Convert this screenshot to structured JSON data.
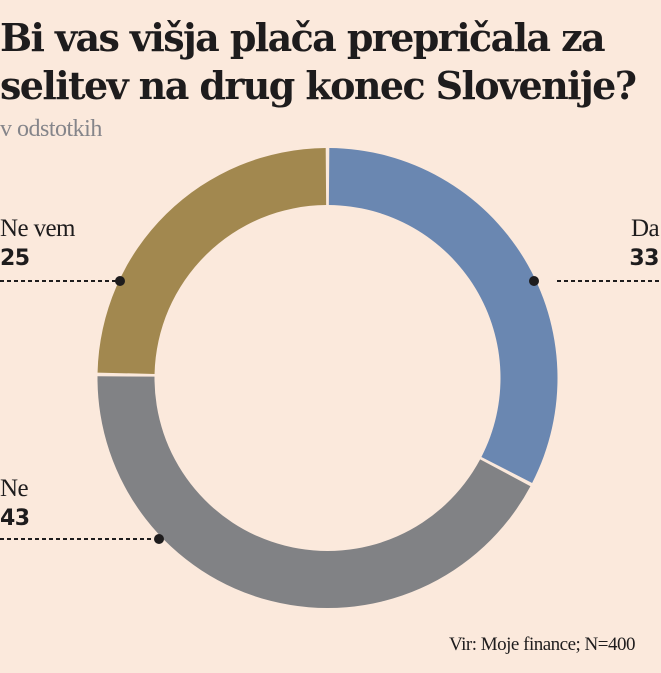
{
  "header": {
    "title_line1": "Bi vas višja plača prepričala za",
    "title_line2": "selitev na drug konec Slovenije?",
    "subtitle": "v odstotkih"
  },
  "labels": {
    "da": {
      "name": "Da",
      "value": "33"
    },
    "ne": {
      "name": "Ne",
      "value": "43"
    },
    "ne_vem": {
      "name": "Ne vem",
      "value": "25"
    }
  },
  "footer": {
    "source": "Vir: Moje finance; N=400"
  },
  "colors": {
    "background": "#fbe9dc",
    "da": "#6a87b1",
    "ne": "#818285",
    "ne_vem": "#a2884f",
    "text": "#1e1c1d",
    "subtitle": "#85858a"
  },
  "chart_data": {
    "type": "pie",
    "variant": "donut",
    "title": "Bi vas višja plača prepričala za selitev na drug konec Slovenije?",
    "subtitle": "v odstotkih",
    "categories": [
      "Da",
      "Ne",
      "Ne vem"
    ],
    "values": [
      33,
      43,
      25
    ],
    "colors": [
      "#6a87b1",
      "#818285",
      "#a2884f"
    ],
    "unit": "%",
    "source": "Vir: Moje finance; N=400",
    "sample_size": 400,
    "start_angle": "12 o'clock, clockwise",
    "legend": "direct labels with dotted leader lines"
  }
}
